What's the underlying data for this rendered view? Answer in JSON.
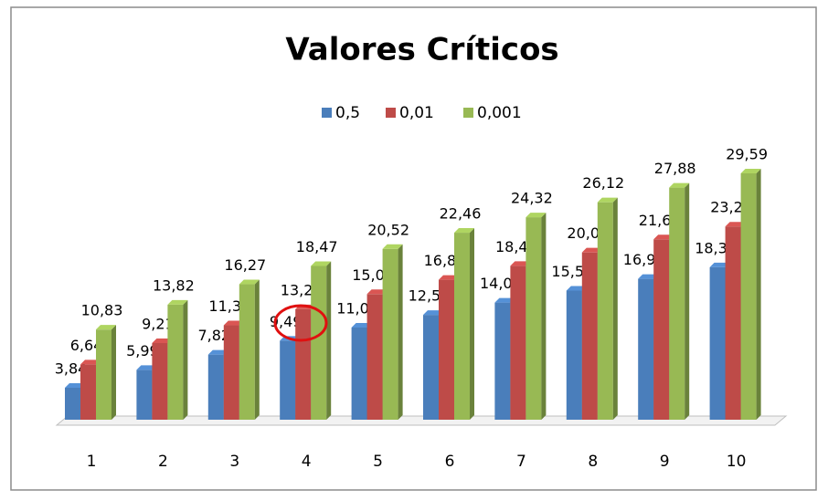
{
  "chart_data": {
    "type": "bar",
    "title": "Valores Críticos",
    "categories": [
      "1",
      "2",
      "3",
      "4",
      "5",
      "6",
      "7",
      "8",
      "9",
      "10"
    ],
    "series": [
      {
        "name": "0,5",
        "color": "#4a7ebb",
        "values": [
          3.84,
          5.99,
          7.82,
          9.49,
          11.07,
          12.59,
          14.07,
          15.51,
          16.92,
          18.31
        ],
        "value_labels": [
          "3,84",
          "5,99",
          "7,82",
          "9,49",
          "11,07",
          "12,59",
          "14,07",
          "15,51",
          "16,92",
          "18,31"
        ]
      },
      {
        "name": "0,01",
        "color": "#be4b48",
        "values": [
          6.64,
          9.21,
          11.34,
          13.28,
          15.09,
          16.81,
          18.48,
          20.09,
          21.67,
          23.21
        ],
        "value_labels": [
          "6,64",
          "9,21",
          "11,34",
          "13,28",
          "15,09",
          "16,81",
          "18,48",
          "20,09",
          "21,67",
          "23,21"
        ]
      },
      {
        "name": "0,001",
        "color": "#98b954",
        "values": [
          10.83,
          13.82,
          16.27,
          18.47,
          20.52,
          22.46,
          24.32,
          26.12,
          27.88,
          29.59
        ],
        "value_labels": [
          "10,83",
          "13,82",
          "16,27",
          "18,47",
          "20,52",
          "22,46",
          "24,32",
          "26,12",
          "27,88",
          "29,59"
        ]
      }
    ],
    "legend": "top"
  }
}
